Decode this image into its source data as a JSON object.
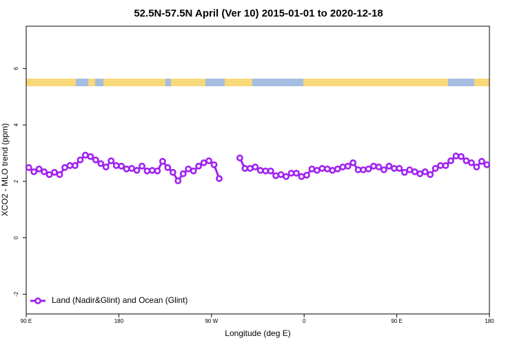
{
  "chart_data": {
    "type": "line",
    "title": "52.5N-57.5N April (Ver 10)   2015-01-01 to 2020-12-18",
    "x_label": "Longitude (deg E)",
    "y_label": "XCO2 - MLO trend (ppm)",
    "x": [
      92.5,
      97.5,
      102.5,
      107.5,
      112.5,
      117.5,
      122.5,
      127.5,
      132.5,
      137.5,
      142.5,
      147.5,
      152.5,
      157.5,
      162.5,
      167.5,
      172.5,
      177.5,
      182.5,
      187.5,
      192.5,
      197.5,
      202.5,
      207.5,
      212.5,
      217.5,
      222.5,
      227.5,
      232.5,
      237.5,
      242.5,
      247.5,
      252.5,
      257.5,
      262.5,
      267.5,
      272.5,
      277.5,
      282.5,
      287.5,
      292.5,
      297.5,
      302.5,
      307.5,
      312.5,
      317.5,
      322.5,
      327.5,
      332.5,
      337.5,
      342.5,
      347.5,
      352.5,
      357.5,
      362.5,
      367.5,
      372.5,
      377.5,
      382.5,
      387.5,
      392.5,
      397.5,
      402.5,
      407.5,
      412.5,
      417.5,
      422.5,
      427.5,
      432.5,
      437.5,
      442.5,
      447.5,
      452.5,
      457.5,
      462.5,
      467.5,
      472.5,
      477.5,
      482.5,
      487.5,
      492.5,
      497.5,
      502.5,
      507.5,
      512.5,
      517.5,
      522.5,
      527.5,
      532.5,
      537.5
    ],
    "series": [
      {
        "name": "Land (Nadir&Glint) and Ocean (Glint)",
        "color": "#a020f0",
        "values": [
          2.49,
          2.34,
          2.44,
          2.34,
          2.24,
          2.32,
          2.24,
          2.49,
          2.56,
          2.56,
          2.76,
          2.93,
          2.88,
          2.76,
          2.63,
          2.51,
          2.73,
          2.56,
          2.54,
          2.44,
          2.46,
          2.39,
          2.54,
          2.37,
          2.39,
          2.37,
          2.71,
          2.49,
          2.32,
          2.02,
          2.27,
          2.44,
          2.37,
          2.54,
          2.66,
          2.73,
          2.59,
          2.1,
          null,
          null,
          null,
          2.83,
          2.46,
          2.46,
          2.51,
          2.39,
          2.37,
          2.37,
          2.2,
          2.24,
          2.17,
          2.29,
          2.29,
          2.17,
          2.22,
          2.44,
          2.39,
          2.46,
          2.44,
          2.39,
          2.44,
          2.51,
          2.54,
          2.66,
          2.41,
          2.41,
          2.44,
          2.54,
          2.51,
          2.41,
          2.54,
          2.46,
          2.46,
          2.32,
          2.41,
          2.34,
          2.27,
          2.34,
          2.24,
          2.46,
          2.56,
          2.56,
          2.73,
          2.9,
          2.88,
          2.73,
          2.66,
          2.51,
          2.71,
          2.59
        ]
      }
    ],
    "xlim": [
      90,
      540
    ],
    "xticks": [
      {
        "value": 90,
        "label": "90 E"
      },
      180,
      {
        "value": 270,
        "label": "90 W"
      },
      {
        "value": 360,
        "label": "0"
      },
      {
        "value": 450,
        "label": "90 E"
      },
      {
        "value": 540,
        "label": "180"
      }
    ],
    "ylim": [
      -2.7,
      7.5
    ],
    "yticks": [
      -2,
      0,
      2,
      4,
      6
    ],
    "legend": "bottom-left"
  }
}
